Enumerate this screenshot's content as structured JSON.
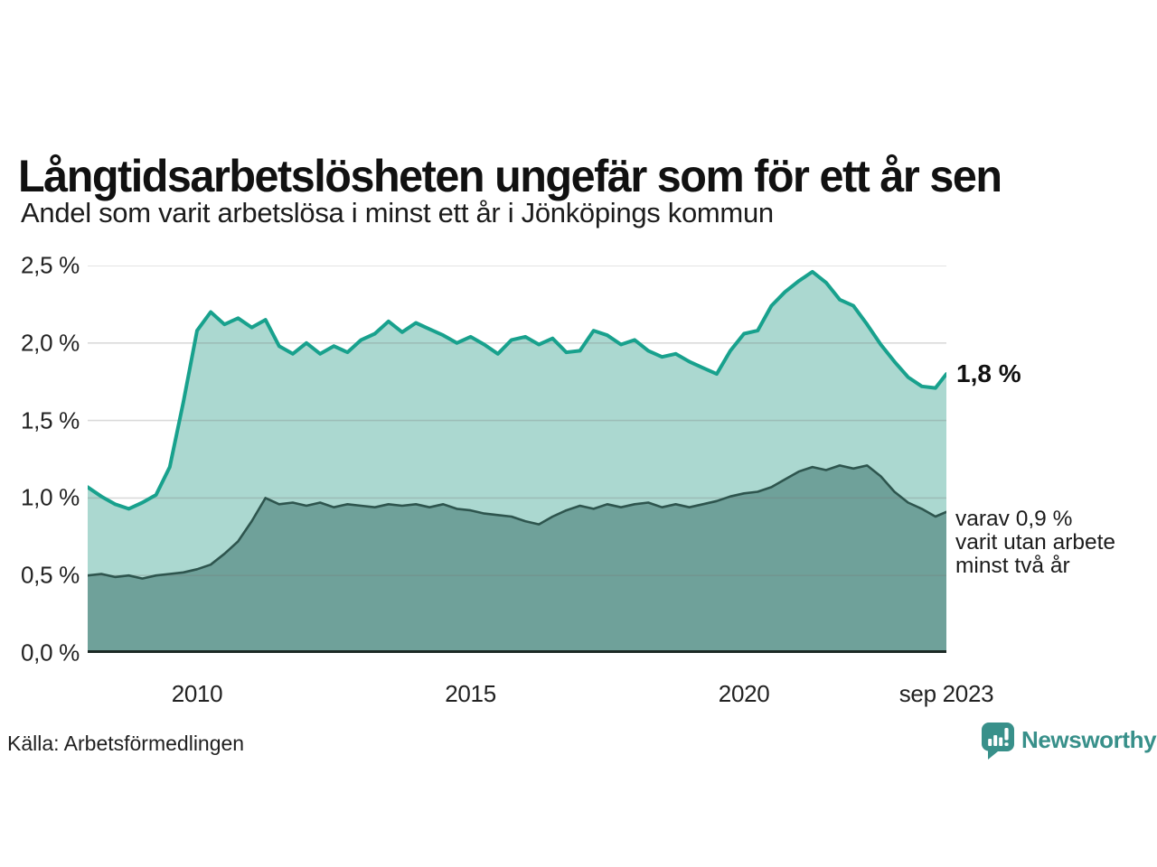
{
  "title": "Långtidsarbetslösheten ungefär som för ett år sen",
  "subtitle": "Andel som varit arbetslösa i minst ett år i Jönköpings kommun",
  "source": "Källa: Arbetsförmedlingen",
  "branding": {
    "name": "Newsworthy",
    "color": "#38908a",
    "icon": "newsworthy-bar-chart-bubble-icon"
  },
  "annotations": {
    "latest_value_label": "1,8 %",
    "secondary_line_1": "varav 0,9 %",
    "secondary_line_2": "varit utan arbete",
    "secondary_line_3": "minst två år"
  },
  "colors": {
    "series_one_year_line": "#18a18d",
    "series_one_year_fill": "#abd8d0",
    "series_two_year_line": "#2e554e",
    "series_two_year_fill": "#6fa19a",
    "baseline": "#1c2925",
    "gridline": "rgba(120,120,120,0.27)",
    "text": "#1c1c1c"
  },
  "chart_data": {
    "type": "area",
    "title": "Långtidsarbetslösheten ungefär som för ett år sen",
    "subtitle": "Andel som varit arbetslösa i minst ett år i Jönköpings kommun",
    "x_unit": "decimal_year",
    "x_range": [
      2008.0,
      2023.7
    ],
    "ylim": [
      0,
      2.5
    ],
    "grid": true,
    "y_ticks": [
      {
        "label": "0,0 %",
        "value": 0.0
      },
      {
        "label": "0,5 %",
        "value": 0.5
      },
      {
        "label": "1,0 %",
        "value": 1.0
      },
      {
        "label": "1,5 %",
        "value": 1.5
      },
      {
        "label": "2,0 %",
        "value": 2.0
      },
      {
        "label": "2,5 %",
        "value": 2.5
      }
    ],
    "x_ticks": [
      {
        "label": "2010",
        "value": 2010
      },
      {
        "label": "2015",
        "value": 2015
      },
      {
        "label": "2020",
        "value": 2020
      },
      {
        "label": "sep 2023",
        "value": 2023.7
      }
    ],
    "x": [
      2008.0,
      2008.25,
      2008.5,
      2008.75,
      2009.0,
      2009.25,
      2009.5,
      2009.75,
      2010.0,
      2010.25,
      2010.5,
      2010.75,
      2011.0,
      2011.25,
      2011.5,
      2011.75,
      2012.0,
      2012.25,
      2012.5,
      2012.75,
      2013.0,
      2013.25,
      2013.5,
      2013.75,
      2014.0,
      2014.25,
      2014.5,
      2014.75,
      2015.0,
      2015.25,
      2015.5,
      2015.75,
      2016.0,
      2016.25,
      2016.5,
      2016.75,
      2017.0,
      2017.25,
      2017.5,
      2017.75,
      2018.0,
      2018.25,
      2018.5,
      2018.75,
      2019.0,
      2019.25,
      2019.5,
      2019.75,
      2020.0,
      2020.25,
      2020.5,
      2020.75,
      2021.0,
      2021.25,
      2021.5,
      2021.75,
      2022.0,
      2022.25,
      2022.5,
      2022.75,
      2023.0,
      2023.25,
      2023.5,
      2023.7
    ],
    "series": [
      {
        "name": "Arbetslösa minst ett år",
        "latest_value": 1.8,
        "values": [
          1.07,
          1.01,
          0.96,
          0.93,
          0.97,
          1.02,
          1.2,
          1.62,
          2.08,
          2.2,
          2.12,
          2.16,
          2.1,
          2.15,
          1.98,
          1.93,
          2.0,
          1.93,
          1.98,
          1.94,
          2.02,
          2.06,
          2.14,
          2.07,
          2.13,
          2.09,
          2.05,
          2.0,
          2.04,
          1.99,
          1.93,
          2.02,
          2.04,
          1.99,
          2.03,
          1.94,
          1.95,
          2.08,
          2.05,
          1.99,
          2.02,
          1.95,
          1.91,
          1.93,
          1.88,
          1.84,
          1.8,
          1.95,
          2.06,
          2.08,
          2.24,
          2.33,
          2.4,
          2.46,
          2.39,
          2.28,
          2.24,
          2.12,
          1.99,
          1.88,
          1.78,
          1.72,
          1.71,
          1.8
        ]
      },
      {
        "name": "Arbetslösa minst två år",
        "latest_value": 0.9,
        "values": [
          0.5,
          0.51,
          0.49,
          0.5,
          0.48,
          0.5,
          0.51,
          0.52,
          0.54,
          0.57,
          0.64,
          0.72,
          0.85,
          1.0,
          0.96,
          0.97,
          0.95,
          0.97,
          0.94,
          0.96,
          0.95,
          0.94,
          0.96,
          0.95,
          0.96,
          0.94,
          0.96,
          0.93,
          0.92,
          0.9,
          0.89,
          0.88,
          0.85,
          0.83,
          0.88,
          0.92,
          0.95,
          0.93,
          0.96,
          0.94,
          0.96,
          0.97,
          0.94,
          0.96,
          0.94,
          0.96,
          0.98,
          1.01,
          1.03,
          1.04,
          1.07,
          1.12,
          1.17,
          1.2,
          1.18,
          1.21,
          1.19,
          1.21,
          1.14,
          1.04,
          0.97,
          0.93,
          0.88,
          0.91
        ]
      }
    ]
  }
}
